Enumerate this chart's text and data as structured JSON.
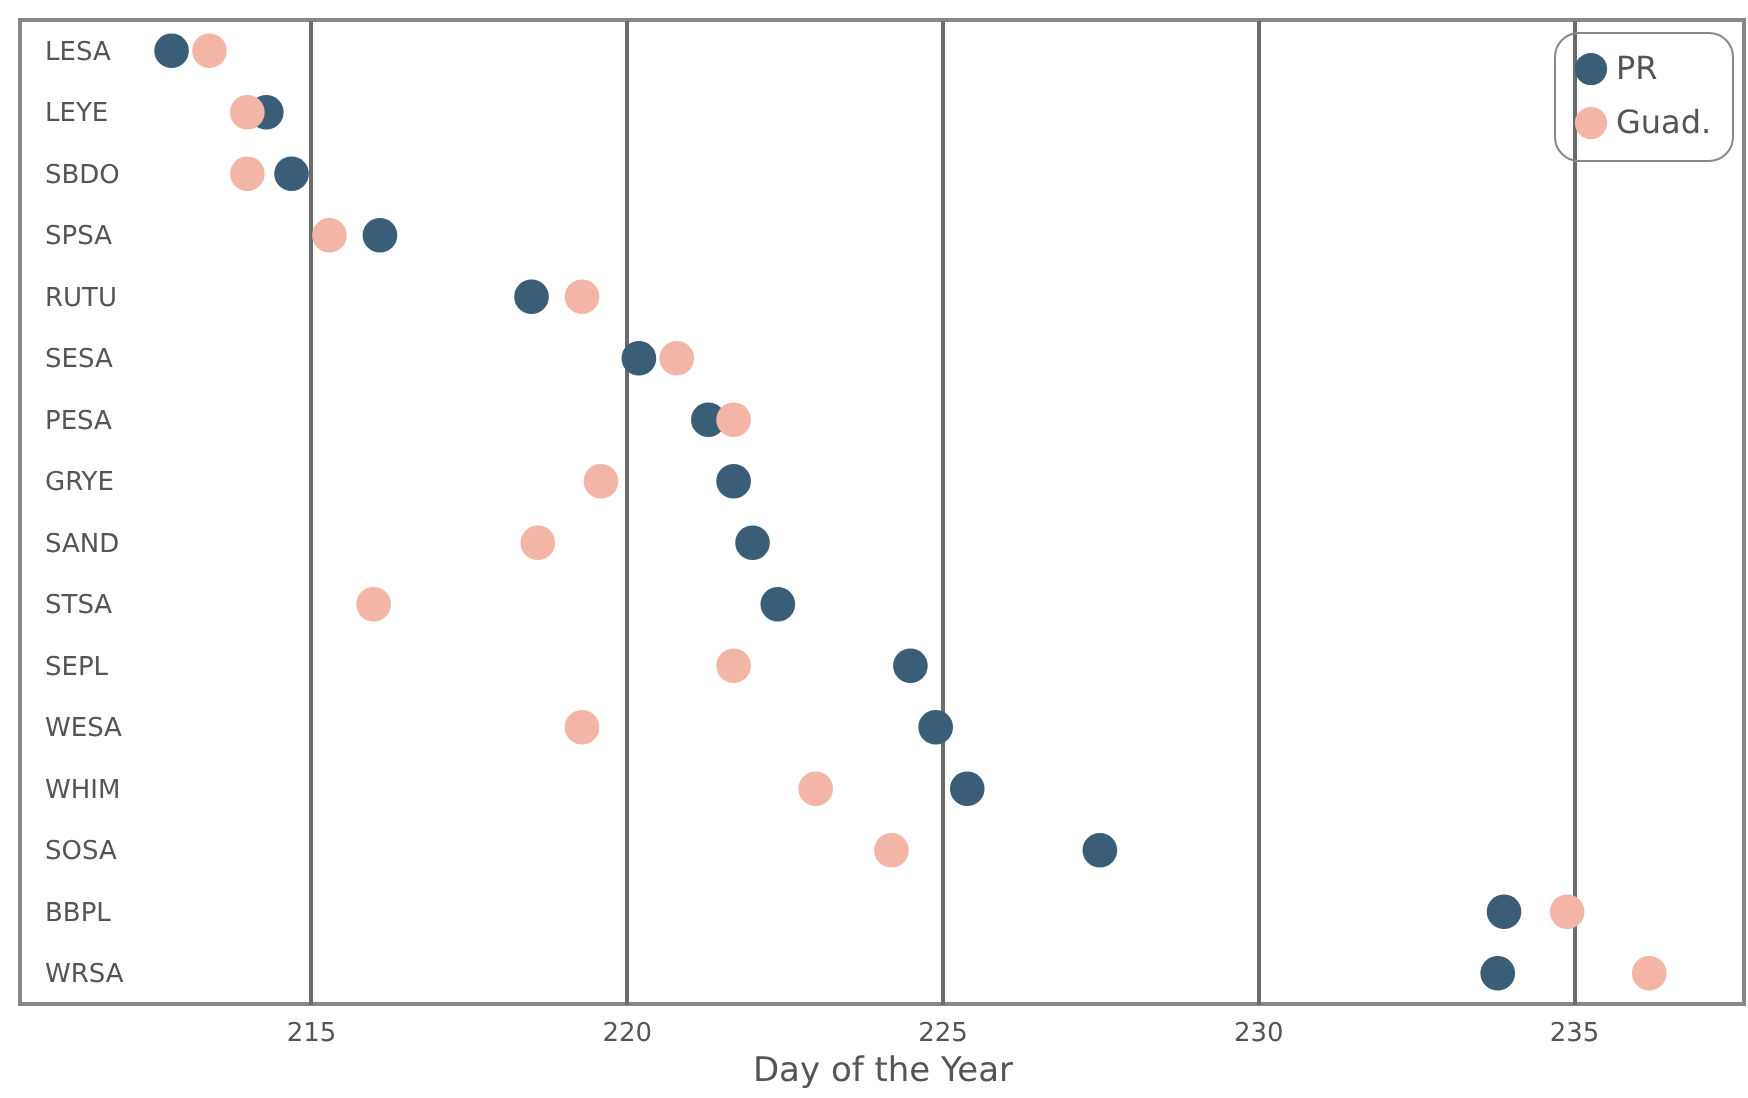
{
  "chart_data": {
    "type": "scatter",
    "orientation": "horizontal",
    "xlabel": "Day of the Year",
    "categories": [
      "LESA",
      "LEYE",
      "SBDO",
      "SPSA",
      "RUTU",
      "SESA",
      "PESA",
      "GRYE",
      "SAND",
      "STSA",
      "SEPL",
      "WESA",
      "WHIM",
      "SOSA",
      "BBPL",
      "WRSA"
    ],
    "series": [
      {
        "name": "PR",
        "color": "#3a5e78",
        "values": [
          212.8,
          214.3,
          214.7,
          216.1,
          218.5,
          220.2,
          221.3,
          221.7,
          222.0,
          222.4,
          224.5,
          224.9,
          225.4,
          227.5,
          233.9,
          233.8
        ]
      },
      {
        "name": "Guad.",
        "color": "#f2b5a6",
        "values": [
          213.4,
          214.0,
          214.0,
          215.3,
          219.3,
          220.8,
          221.7,
          219.6,
          218.6,
          216.0,
          221.7,
          219.3,
          223.0,
          224.2,
          234.9,
          236.2
        ]
      }
    ],
    "xlim": [
      210.4,
      237.7
    ],
    "xticks": [
      215,
      220,
      225,
      230,
      235
    ],
    "grid": "x",
    "legend": "top right",
    "marker": "circle"
  }
}
